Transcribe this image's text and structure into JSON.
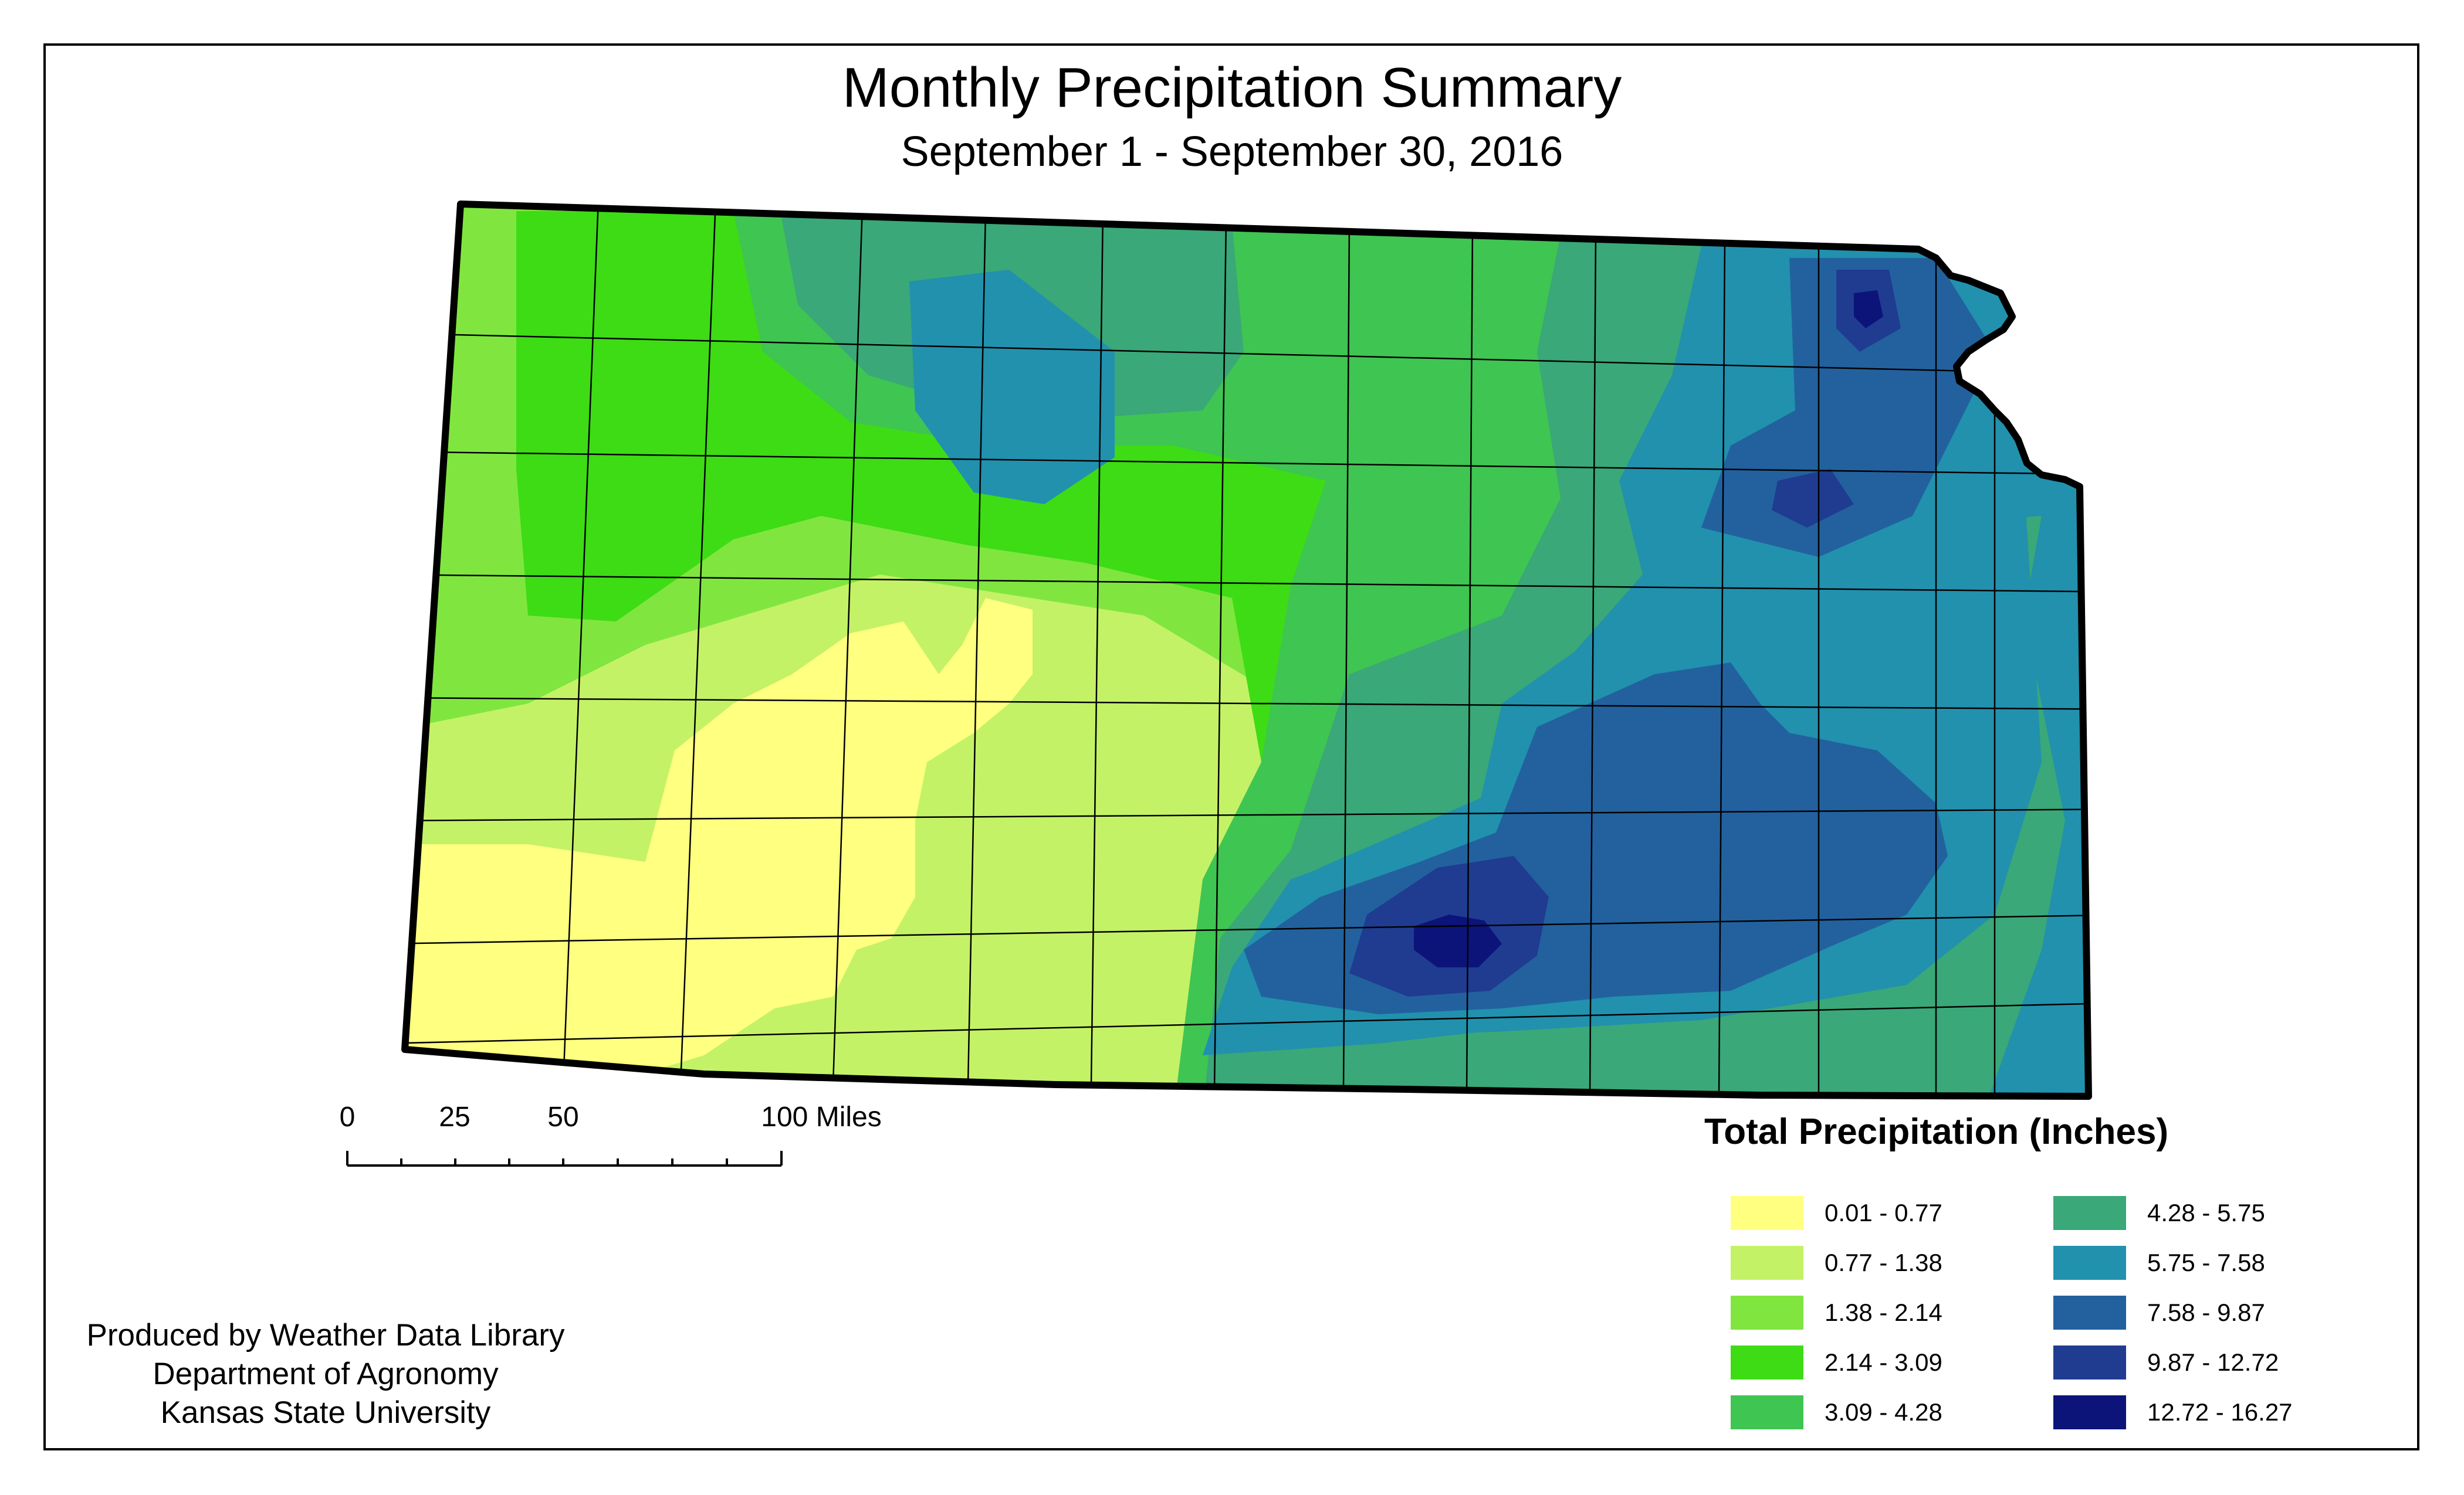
{
  "title": "Monthly Precipitation Summary",
  "subtitle": "September 1 - September 30, 2016",
  "scale": {
    "ticks": [
      "0",
      "25",
      "50",
      "100 Miles"
    ]
  },
  "credits": {
    "line1": "Produced by Weather Data Library",
    "line2": "Department of Agronomy",
    "line3": "Kansas State University"
  },
  "legend": {
    "title": "Total Precipitation (Inches)",
    "items": [
      {
        "label": "0.01 - 0.77",
        "color": "#ffff80"
      },
      {
        "label": "0.77 - 1.38",
        "color": "#c4f266"
      },
      {
        "label": "1.38 - 2.14",
        "color": "#80e63f"
      },
      {
        "label": "2.14 - 3.09",
        "color": "#3ddc15"
      },
      {
        "label": "3.09 - 4.28",
        "color": "#3fc552"
      },
      {
        "label": "4.28 - 5.75",
        "color": "#3aa878"
      },
      {
        "label": "5.75 - 7.58",
        "color": "#2191ae"
      },
      {
        "label": "7.58 - 9.87",
        "color": "#22619e"
      },
      {
        "label": "9.87 - 12.72",
        "color": "#1f3c90"
      },
      {
        "label": "12.72 - 16.27",
        "color": "#0c147a"
      }
    ]
  }
}
